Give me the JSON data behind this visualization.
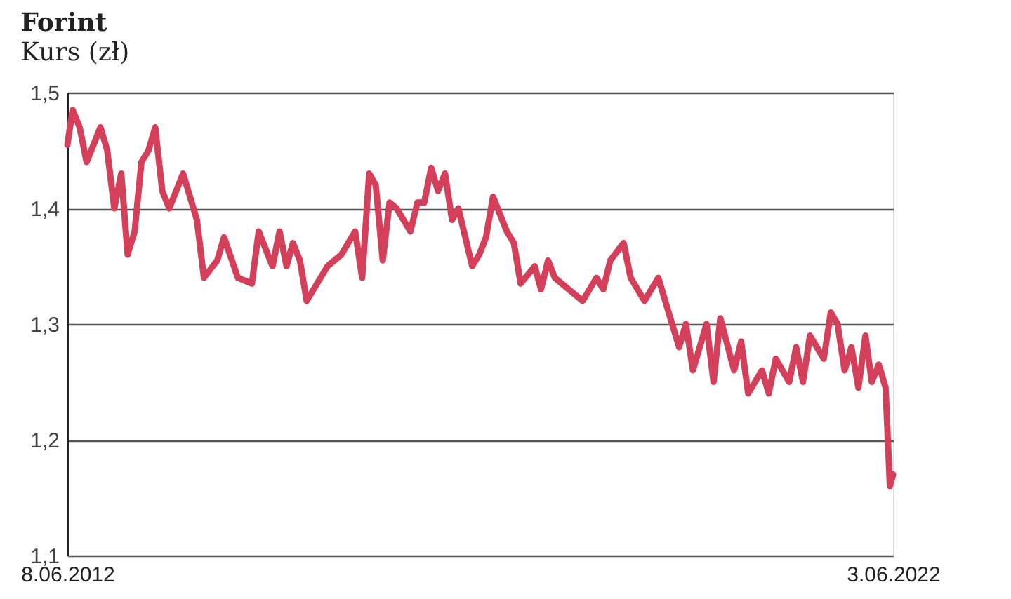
{
  "chart_data": {
    "type": "line",
    "title": "Forint",
    "subtitle": "Kurs (zł)",
    "x": [
      "2012-06-08",
      "2012-07",
      "2012-08",
      "2012-09",
      "2012-11",
      "2012-12",
      "2013-01",
      "2013-02",
      "2013-03",
      "2013-04",
      "2013-05",
      "2013-06",
      "2013-07",
      "2013-08",
      "2013-09",
      "2013-11",
      "2014-01",
      "2014-02",
      "2014-04",
      "2014-05",
      "2014-07",
      "2014-09",
      "2014-10",
      "2014-12",
      "2015-01",
      "2015-02",
      "2015-03",
      "2015-04",
      "2015-05",
      "2015-08",
      "2015-10",
      "2015-12",
      "2016-01",
      "2016-02",
      "2016-03",
      "2016-04",
      "2016-05",
      "2016-06",
      "2016-08",
      "2016-09",
      "2016-10",
      "2016-11",
      "2016-12",
      "2017-01",
      "2017-02",
      "2017-03",
      "2017-05",
      "2017-06",
      "2017-07",
      "2017-08",
      "2017-10",
      "2017-11",
      "2017-12",
      "2018-02",
      "2018-03",
      "2018-04",
      "2018-05",
      "2018-07",
      "2018-09",
      "2018-11",
      "2018-12",
      "2019-01",
      "2019-03",
      "2019-04",
      "2019-06",
      "2019-08",
      "2019-11",
      "2019-12",
      "2020-01",
      "2020-03",
      "2020-04",
      "2020-05",
      "2020-07",
      "2020-08",
      "2020-09",
      "2020-11",
      "2020-12",
      "2021-01",
      "2021-03",
      "2021-04",
      "2021-05",
      "2021-06",
      "2021-08",
      "2021-09",
      "2021-10",
      "2021-11",
      "2021-12",
      "2022-01",
      "2022-02",
      "2022-03",
      "2022-04",
      "2022-05",
      "2022-05-20",
      "2022-06-03"
    ],
    "series": [
      {
        "color": "#d43f5a",
        "values": [
          1.455,
          1.485,
          1.47,
          1.44,
          1.47,
          1.45,
          1.4,
          1.43,
          1.36,
          1.38,
          1.44,
          1.45,
          1.47,
          1.415,
          1.4,
          1.43,
          1.39,
          1.34,
          1.355,
          1.375,
          1.34,
          1.335,
          1.38,
          1.35,
          1.38,
          1.35,
          1.37,
          1.355,
          1.32,
          1.35,
          1.36,
          1.38,
          1.34,
          1.43,
          1.42,
          1.355,
          1.405,
          1.4,
          1.38,
          1.405,
          1.405,
          1.435,
          1.415,
          1.43,
          1.39,
          1.4,
          1.35,
          1.36,
          1.375,
          1.41,
          1.38,
          1.37,
          1.335,
          1.35,
          1.33,
          1.355,
          1.34,
          1.33,
          1.32,
          1.34,
          1.33,
          1.355,
          1.37,
          1.34,
          1.32,
          1.34,
          1.28,
          1.3,
          1.26,
          1.3,
          1.25,
          1.305,
          1.26,
          1.285,
          1.24,
          1.26,
          1.24,
          1.27,
          1.25,
          1.28,
          1.25,
          1.29,
          1.27,
          1.31,
          1.3,
          1.26,
          1.28,
          1.245,
          1.29,
          1.25,
          1.265,
          1.245,
          1.16,
          1.17
        ]
      }
    ],
    "xlim": [
      "2012-06-08",
      "2022-06-03"
    ],
    "xticks": [
      {
        "value": "2012-06-08",
        "label": "8.06.2012"
      },
      {
        "value": "2022-06-03",
        "label": "3.06.2022"
      }
    ],
    "ylim": [
      1.1,
      1.5
    ],
    "yticks": [
      {
        "value": 1.1,
        "label": "1,1"
      },
      {
        "value": 1.2,
        "label": "1,2"
      },
      {
        "value": 1.3,
        "label": "1,3"
      },
      {
        "value": 1.4,
        "label": "1,4"
      },
      {
        "value": 1.5,
        "label": "1,5"
      }
    ],
    "grid": "y",
    "legend": false,
    "marker": "none",
    "line_style": "solid"
  }
}
